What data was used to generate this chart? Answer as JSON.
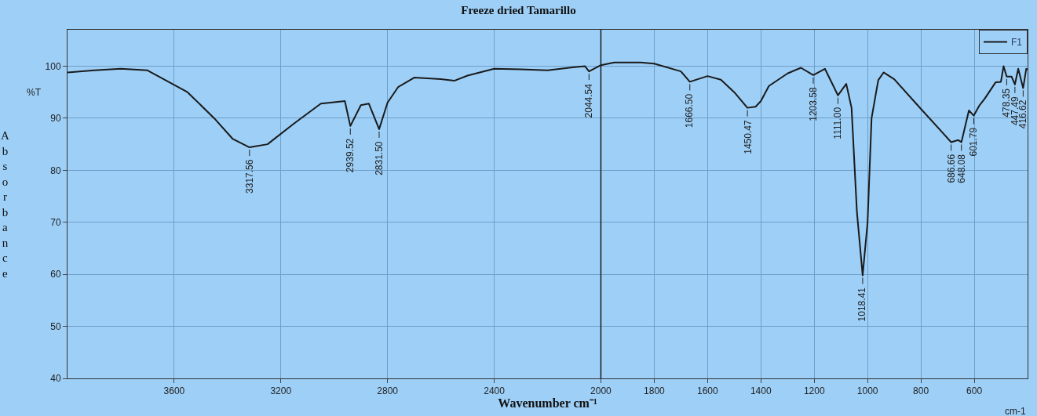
{
  "chart_data": {
    "type": "line",
    "title": "Freeze dried Tamarillo",
    "xlabel": "Wavenumber cm⁻¹",
    "ylabel": "Absorbance",
    "x": [
      4000,
      3900,
      3800,
      3700,
      3650,
      3550,
      3450,
      3380,
      3317.56,
      3250,
      3150,
      3050,
      2980,
      2960,
      2939.52,
      2900,
      2870,
      2831.5,
      2800,
      2760,
      2700,
      2600,
      2550,
      2500,
      2400,
      2300,
      2200,
      2100,
      2060,
      2044.54,
      2000,
      1950,
      1850,
      1800,
      1700,
      1666.5,
      1600,
      1550,
      1500,
      1450.47,
      1420,
      1400,
      1370,
      1300,
      1250,
      1203.58,
      1160,
      1111,
      1080,
      1060,
      1040,
      1018.41,
      1000,
      985,
      960,
      940,
      900,
      800,
      720,
      686.66,
      660,
      648.08,
      620,
      601.79,
      580,
      560,
      520,
      500,
      490,
      478.35,
      460,
      447.49,
      435,
      416.62,
      405,
      400
    ],
    "series": [
      {
        "name": "F1",
        "color": "#1a1a1a",
        "values": [
          98.8,
          99.2,
          99.5,
          99.2,
          97.8,
          95,
          90,
          86,
          84.4,
          85,
          89,
          92.8,
          93.2,
          93.3,
          88.5,
          92.5,
          92.8,
          87.9,
          93,
          96,
          97.8,
          97.5,
          97.2,
          98.2,
          99.5,
          99.4,
          99.2,
          99.8,
          100,
          99,
          100.2,
          100.7,
          100.7,
          100.5,
          99,
          97,
          98.1,
          97.4,
          95,
          92,
          92.2,
          93.3,
          96.2,
          98.6,
          99.7,
          98.3,
          99.5,
          94.4,
          96.6,
          92,
          72,
          59.8,
          70,
          90,
          97.3,
          98.8,
          97.5,
          91.8,
          87.3,
          85.4,
          85.8,
          85.4,
          91.5,
          90.5,
          92.5,
          93.8,
          96.9,
          97,
          100,
          98,
          98,
          96.5,
          99.5,
          95.8,
          99.5,
          99.4
        ]
      }
    ],
    "xlim": [
      4000,
      400
    ],
    "xticks": [
      3600,
      3200,
      2800,
      2400,
      2000,
      1800,
      1600,
      1400,
      1200,
      1000,
      800,
      600
    ],
    "ylim": [
      40,
      107
    ],
    "yticks": [
      40,
      50,
      60,
      70,
      80,
      90,
      100
    ],
    "ref_lines": [
      {
        "axis": "x",
        "value": 2000,
        "color": "#1a1a1a"
      }
    ],
    "grid": true,
    "legend": "top right",
    "marker": "none",
    "line_style": "solid",
    "annotations": [
      "%T",
      "cm-1",
      {
        "text": "3317.56",
        "x": 3317.56,
        "y": 84.4
      },
      {
        "text": "2939.52",
        "x": 2939.52,
        "y": 88.5
      },
      {
        "text": "2831.50",
        "x": 2831.5,
        "y": 87.9
      },
      {
        "text": "2044.54",
        "x": 2044.54,
        "y": 99
      },
      {
        "text": "1666.50",
        "x": 1666.5,
        "y": 97
      },
      {
        "text": "1450.47",
        "x": 1450.47,
        "y": 92
      },
      {
        "text": "1203.58",
        "x": 1203.58,
        "y": 98.3
      },
      {
        "text": "1111.00",
        "x": 1111,
        "y": 94.4
      },
      {
        "text": "1018.41",
        "x": 1018.41,
        "y": 59.8
      },
      {
        "text": "686.66",
        "x": 686.66,
        "y": 85.4
      },
      {
        "text": "648.08",
        "x": 648.08,
        "y": 85.4
      },
      {
        "text": "601.79",
        "x": 601.79,
        "y": 90.5
      },
      {
        "text": "478.35",
        "x": 478.35,
        "y": 98
      },
      {
        "text": "447.49",
        "x": 447.49,
        "y": 96.5
      },
      {
        "text": "416.62",
        "x": 416.62,
        "y": 95.8
      }
    ]
  }
}
